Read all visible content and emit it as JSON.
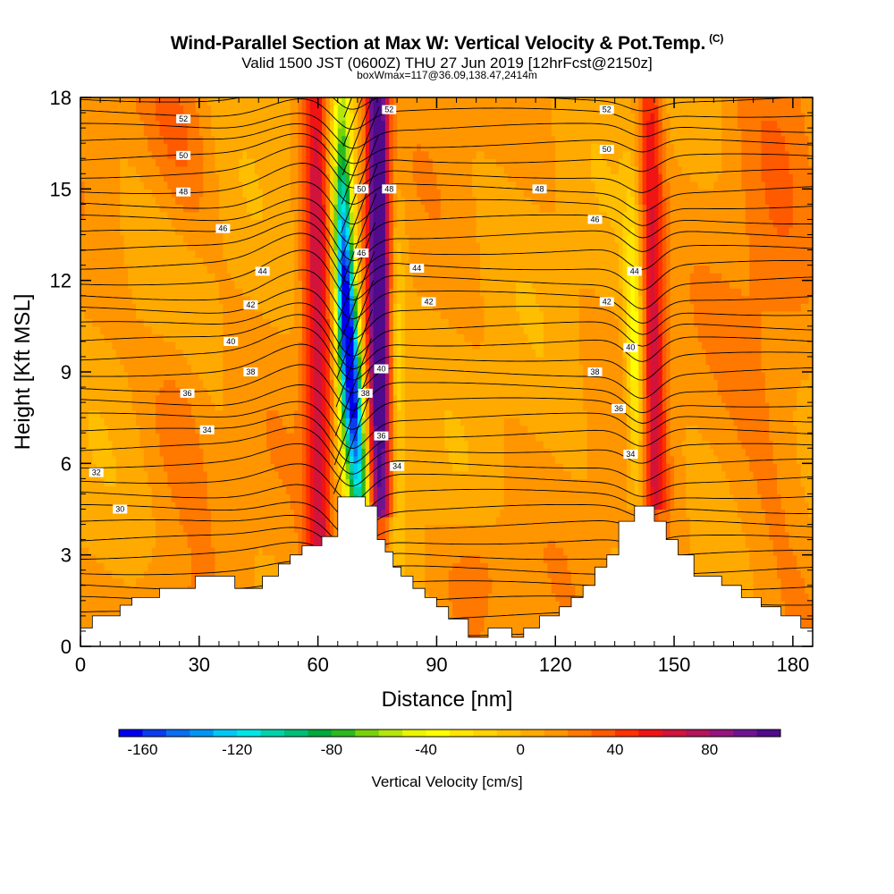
{
  "title": "Wind-Parallel Section at Max W: Vertical Velocity & Pot.Temp.",
  "title_mark": "(C)",
  "subtitle_line1": "Valid 1500 JST (0600Z) THU 27 Jun 2019 [12hrFcst@2150z]",
  "subtitle_line2": "boxWmax=117@36.09,138.47,2414m",
  "chart_data": {
    "type": "heatmap",
    "title": "Wind-Parallel Section at Max W: Vertical Velocity & Pot.Temp.",
    "xlabel": "Distance [nm]",
    "ylabel": "Height [Kft MSL]",
    "xlim": [
      0,
      185
    ],
    "ylim": [
      0,
      18
    ],
    "x_ticks": [
      0,
      30,
      60,
      90,
      120,
      150,
      180
    ],
    "y_ticks": [
      0,
      3,
      6,
      9,
      12,
      15,
      18
    ],
    "grid": false,
    "colorbar": {
      "label": "Vertical Velocity [cm/s]",
      "ticks": [
        -160,
        -120,
        -80,
        -40,
        0,
        40,
        80
      ],
      "range": [
        -170,
        110
      ],
      "step": 10,
      "colors": [
        "#0000ee",
        "#0a3cf0",
        "#0a6ef0",
        "#0096f5",
        "#00c8f5",
        "#00e6e6",
        "#00d2aa",
        "#00be78",
        "#00aa3c",
        "#2cb91e",
        "#78d20a",
        "#b4e60a",
        "#ebf500",
        "#ffff00",
        "#ffe600",
        "#ffd200",
        "#ffbe00",
        "#ffaa00",
        "#ff9600",
        "#ff7800",
        "#ff5a00",
        "#ff3200",
        "#f01414",
        "#d2143c",
        "#b4145a",
        "#96147d",
        "#6e1491",
        "#500a8c"
      ]
    },
    "isentrope_labels": [
      30,
      32,
      34,
      36,
      38,
      40,
      42,
      44,
      46,
      48,
      50,
      52
    ],
    "updraft_cores": [
      {
        "x": 58,
        "ztop": 18,
        "w": 50
      },
      {
        "x": 76,
        "ztop": 18,
        "w": 110
      },
      {
        "x": 145,
        "ztop": 16,
        "w": 55
      }
    ],
    "downdraft_cores": [
      {
        "x": 71,
        "z": 9.5,
        "w": -165
      },
      {
        "x": 140,
        "z": 10,
        "w": -60
      }
    ],
    "terrain": {
      "x": [
        0,
        3,
        3,
        10,
        10,
        13,
        13,
        20,
        20,
        29,
        29,
        39,
        39,
        46,
        46,
        50,
        50,
        53,
        53,
        56,
        56,
        58,
        58,
        61,
        61,
        65,
        65,
        68,
        68,
        72,
        72,
        75,
        75,
        77,
        77,
        79,
        79,
        81,
        81,
        84,
        84,
        87,
        87,
        90,
        90,
        93,
        93,
        98,
        98,
        103,
        103,
        109,
        109,
        112,
        112,
        116,
        116,
        121,
        121,
        124,
        124,
        127,
        127,
        130,
        130,
        133,
        133,
        136,
        136,
        140,
        140,
        145,
        145,
        148,
        148,
        151,
        151,
        155,
        155,
        162,
        162,
        167,
        167,
        172,
        172,
        177,
        177,
        182,
        182,
        185
      ],
      "z": [
        0.6,
        0.6,
        1.0,
        1.0,
        1.35,
        1.35,
        1.6,
        1.6,
        1.9,
        1.9,
        2.3,
        2.3,
        1.9,
        1.9,
        2.3,
        2.3,
        2.7,
        2.7,
        3.0,
        3.0,
        3.3,
        3.3,
        3.3,
        3.3,
        3.6,
        3.6,
        4.9,
        4.9,
        4.9,
        4.9,
        4.6,
        4.6,
        3.5,
        3.5,
        3.1,
        3.1,
        2.6,
        2.6,
        2.3,
        2.3,
        1.9,
        1.9,
        1.6,
        1.6,
        1.3,
        1.3,
        0.9,
        0.9,
        0.3,
        0.3,
        0.6,
        0.6,
        0.3,
        0.3,
        0.6,
        0.6,
        1.0,
        1.0,
        1.3,
        1.3,
        1.6,
        1.6,
        2.0,
        2.0,
        2.6,
        2.6,
        3.0,
        3.0,
        4.1,
        4.1,
        4.6,
        4.6,
        4.1,
        4.1,
        3.5,
        3.5,
        3.0,
        3.0,
        2.3,
        2.3,
        2.0,
        2.0,
        1.6,
        1.6,
        1.3,
        1.3,
        1.0,
        1.0,
        0.6,
        0.6
      ]
    }
  }
}
